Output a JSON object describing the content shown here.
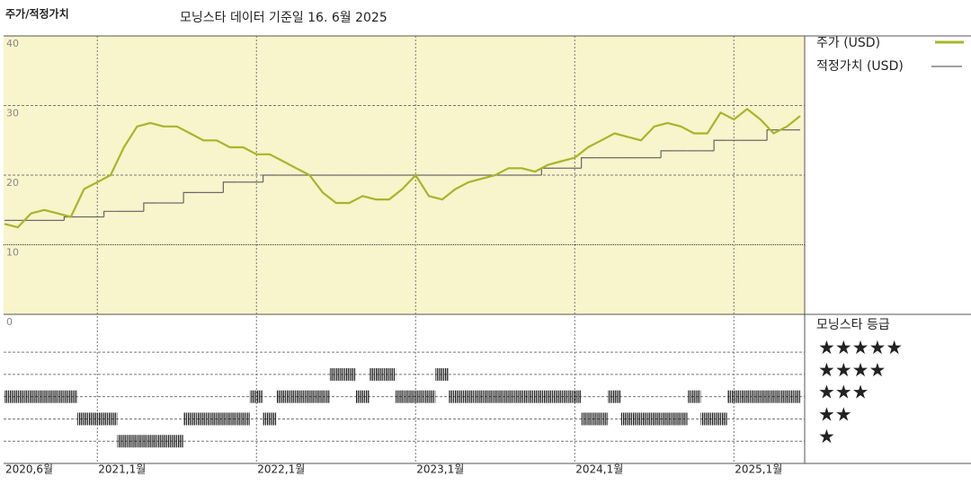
{
  "chart_data": {
    "type": "line",
    "title": "주가/적정가치",
    "subtitle": "모닝스타 데이터 기준일 16. 6월 2025",
    "x": [
      "2020-06",
      "2020-07",
      "2020-08",
      "2020-09",
      "2020-10",
      "2020-11",
      "2020-12",
      "2021-01",
      "2021-02",
      "2021-03",
      "2021-04",
      "2021-05",
      "2021-06",
      "2021-07",
      "2021-08",
      "2021-09",
      "2021-10",
      "2021-11",
      "2021-12",
      "2022-01",
      "2022-02",
      "2022-03",
      "2022-04",
      "2022-05",
      "2022-06",
      "2022-07",
      "2022-08",
      "2022-09",
      "2022-10",
      "2022-11",
      "2022-12",
      "2023-01",
      "2023-02",
      "2023-03",
      "2023-04",
      "2023-05",
      "2023-06",
      "2023-07",
      "2023-08",
      "2023-09",
      "2023-10",
      "2023-11",
      "2023-12",
      "2024-01",
      "2024-02",
      "2024-03",
      "2024-04",
      "2024-05",
      "2024-06",
      "2024-07",
      "2024-08",
      "2024-09",
      "2024-10",
      "2024-11",
      "2024-12",
      "2025-01",
      "2025-02",
      "2025-03",
      "2025-04",
      "2025-05",
      "2025-06"
    ],
    "series": [
      {
        "name": "주가 (USD)",
        "color": "#a9b42a",
        "style": "line",
        "values": [
          13,
          12.5,
          14.5,
          15,
          14.5,
          14,
          18,
          19,
          20,
          24,
          27,
          27.5,
          27,
          27,
          26,
          25,
          25,
          24,
          24,
          23,
          23,
          22,
          21,
          20,
          17.5,
          16,
          16,
          17,
          16.5,
          16.5,
          18,
          20,
          17,
          16.5,
          18,
          19,
          19.5,
          20,
          21,
          21,
          20.5,
          21.5,
          22,
          22.5,
          24,
          25,
          26,
          25.5,
          25,
          27,
          27.5,
          27,
          26,
          26,
          29,
          28,
          29.5,
          28,
          26,
          27,
          28.5
        ]
      },
      {
        "name": "적정가치 (USD)",
        "color": "#666666",
        "style": "step",
        "values": [
          13.5,
          13.5,
          13.5,
          13.5,
          13.5,
          14,
          14,
          14,
          14.8,
          14.8,
          14.8,
          16,
          16,
          16,
          17.5,
          17.5,
          17.5,
          19,
          19,
          19,
          20,
          20,
          20,
          20,
          20,
          20,
          20,
          20,
          20,
          20,
          20,
          20,
          20,
          20,
          20,
          20,
          20,
          20,
          20,
          20,
          20,
          21,
          21,
          21,
          22.5,
          22.5,
          22.5,
          22.5,
          22.5,
          22.5,
          23.5,
          23.5,
          23.5,
          23.5,
          25,
          25,
          25,
          25,
          26.5,
          26.5,
          26.5
        ]
      }
    ],
    "ylim": [
      0,
      40
    ],
    "yticks": [
      0,
      10,
      20,
      30,
      40
    ],
    "xticks": [
      {
        "value": "2020-06",
        "label": "2020,6월"
      },
      {
        "value": "2021-01",
        "label": "2021,1월"
      },
      {
        "value": "2022-01",
        "label": "2022,1월"
      },
      {
        "value": "2023-01",
        "label": "2023,1월"
      },
      {
        "value": "2024-01",
        "label": "2024,1월"
      },
      {
        "value": "2025-01",
        "label": "2025,1월"
      }
    ],
    "grid": true,
    "rating": {
      "title": "모닝스타 등급",
      "values": [
        3,
        3,
        3,
        3,
        3,
        3,
        2,
        2,
        2,
        1,
        1,
        1,
        1,
        1,
        2,
        2,
        2,
        2,
        2,
        3,
        2,
        3,
        3,
        3,
        3,
        4,
        4,
        3,
        4,
        4,
        3,
        3,
        3,
        4,
        3,
        3,
        3,
        3,
        3,
        3,
        3,
        3,
        3,
        3,
        2,
        2,
        3,
        2,
        2,
        2,
        2,
        2,
        3,
        2,
        2,
        3,
        3,
        3,
        3,
        3,
        3
      ],
      "ylim": [
        0,
        6.7
      ],
      "yticks": [
        {
          "value": 5,
          "label": "★★★★★"
        },
        {
          "value": 4,
          "label": "★★★★"
        },
        {
          "value": 3,
          "label": "★★★"
        },
        {
          "value": 2,
          "label": "★★"
        },
        {
          "value": 1,
          "label": "★"
        }
      ]
    }
  }
}
